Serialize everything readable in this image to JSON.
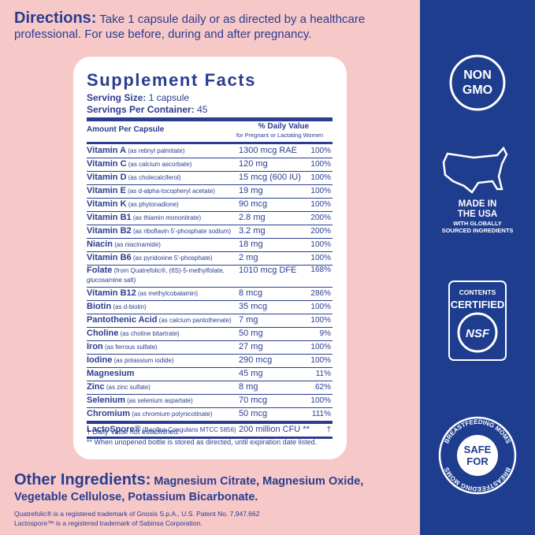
{
  "directions": {
    "label": "Directions:",
    "text": "Take 1 capsule daily or as directed by a healthcare professional. For use before, during and after pregnancy."
  },
  "supplement_facts": {
    "title": "Supplement Facts",
    "serving_size_label": "Serving Size:",
    "serving_size": "1 capsule",
    "servings_label": "Servings Per Container:",
    "servings": "45",
    "amount_header": "Amount Per Capsule",
    "dv_header": "% Daily Value",
    "dv_subheader": "for Pregnant or Lactating Women",
    "rows": [
      {
        "name": "Vitamin A",
        "source": "(as retinyl palmitate)",
        "amount": "1300 mcg RAE",
        "dv": "100%"
      },
      {
        "name": "Vitamin C",
        "source": "(as calcium ascorbate)",
        "amount": "120 mg",
        "dv": "100%"
      },
      {
        "name": "Vitamin D",
        "source": "(as cholecalciferol)",
        "amount": "15 mcg (600 IU)",
        "dv": "100%"
      },
      {
        "name": "Vitamin E",
        "source": "(as d-alpha-tocopheryl acetate)",
        "amount": "19 mg",
        "dv": "100%"
      },
      {
        "name": "Vitamin K",
        "source": "(as phytonadione)",
        "amount": "90 mcg",
        "dv": "100%"
      },
      {
        "name": "Vitamin B1",
        "source": "(as thiamin mononitrate)",
        "amount": "2.8 mg",
        "dv": "200%"
      },
      {
        "name": "Vitamin B2",
        "source": "(as riboflavin 5'-phosphate sodium)",
        "amount": "3.2 mg",
        "dv": "200%"
      },
      {
        "name": "Niacin",
        "source": "(as niacinamide)",
        "amount": "18 mg",
        "dv": "100%"
      },
      {
        "name": "Vitamin B6",
        "source": "(as pyridoxine 5'-phosphate)",
        "amount": "2 mg",
        "dv": "100%"
      },
      {
        "name": "Folate",
        "source": "(from Quatrefolic®, (6S)-5-methylfolate, glucosamine salt)",
        "amount": "1010 mcg DFE",
        "dv": "168%"
      },
      {
        "name": "Vitamin B12",
        "source": "(as methylcobalamin)",
        "amount": "8 mcg",
        "dv": "286%"
      },
      {
        "name": "Biotin",
        "source": "(as d-biotin)",
        "amount": "35 mcg",
        "dv": "100%"
      },
      {
        "name": "Pantothenic Acid",
        "source": "(as calcium pantothenate)",
        "amount": "7 mg",
        "dv": "100%"
      },
      {
        "name": "Choline",
        "source": "(as choline bitartrate)",
        "amount": "50 mg",
        "dv": "9%"
      },
      {
        "name": "Iron",
        "source": "(as ferrous sulfate)",
        "amount": "27 mg",
        "dv": "100%"
      },
      {
        "name": "Iodine",
        "source": "(as potassium iodide)",
        "amount": "290 mcg",
        "dv": "100%"
      },
      {
        "name": "Magnesium",
        "source": "",
        "amount": "45 mg",
        "dv": "11%"
      },
      {
        "name": "Zinc",
        "source": "(as zinc sulfate)",
        "amount": "8 mg",
        "dv": "62%"
      },
      {
        "name": "Selenium",
        "source": "(as selenium aspartate)",
        "amount": "70 mcg",
        "dv": "100%"
      },
      {
        "name": "Chromium",
        "source": "(as chromium polynicotinate)",
        "amount": "50 mcg",
        "dv": "111%"
      },
      {
        "name": "LactoSpore®",
        "source": "(Bacillus Coagulans MTCC 5856)",
        "amount": "200 million CFU **",
        "dv": "†"
      }
    ],
    "footnotes": [
      "† Daily Value not established.",
      "** When unopened bottle is stored as directed, until expiration date listed."
    ]
  },
  "other_ingredients": {
    "label": "Other Ingredients:",
    "text": "Magnesium Citrate, Magnesium Oxide, Vegetable Cellulose, Potassium Bicarbonate."
  },
  "trademarks": [
    "Quatrefolic® is a registered trademark of Gnosis S.p.A., U.S. Patent No. 7,947,662",
    "Lactospore™ is a registered trademark of Sabinsa Corporation."
  ],
  "badges": {
    "non_gmo": [
      "NON",
      "GMO"
    ],
    "made_in": [
      "MADE IN",
      "THE USA"
    ],
    "made_in_sub": [
      "WITH GLOBALLY",
      "SOURCED INGREDIENTS"
    ],
    "nsf": [
      "CONTENTS",
      "CERTIFIED",
      "NSF"
    ],
    "breastfeeding": {
      "ring": "BREASTFEEDING MOMS",
      "center": [
        "SAFE",
        "FOR"
      ]
    }
  }
}
